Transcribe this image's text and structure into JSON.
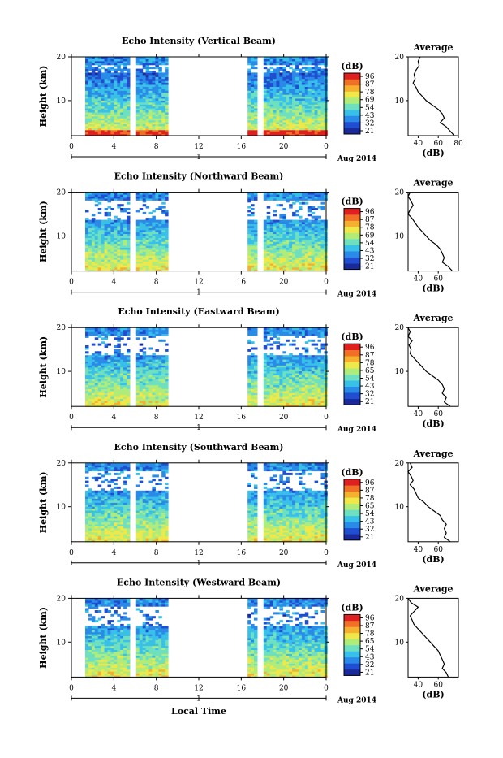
{
  "chart_data": {
    "type": "heatmap",
    "colorbar": {
      "label": "(dB)",
      "colors": [
        "#1a2a9a",
        "#1f4fd0",
        "#2a8ae8",
        "#38c0e8",
        "#6ee0c0",
        "#b0ec7a",
        "#eee84a",
        "#f5b030",
        "#f07028",
        "#e02020"
      ]
    },
    "x_axis": {
      "label": "Local Time",
      "range": [
        0,
        24
      ],
      "ticks": [
        "0",
        "4",
        "8",
        "12",
        "16",
        "20",
        "0"
      ],
      "day_label": "1",
      "date_label": "Aug 2014"
    },
    "profile_xlabel": "(dB)",
    "panels": [
      {
        "title": "Echo Intensity (Vertical Beam)",
        "ylabel": "Height (km)",
        "y_ticks": [
          "20",
          "10"
        ],
        "colorbar_ticks": [
          "96",
          "87",
          "78",
          "69",
          "54",
          "43",
          "32",
          "21"
        ],
        "profile_title": "Average",
        "profile_y_ticks": [
          "20",
          "10"
        ],
        "profile_x_ticks": [
          "40",
          "60",
          "80"
        ],
        "profile": [
          [
            20,
            42
          ],
          [
            19,
            40
          ],
          [
            18,
            41
          ],
          [
            17,
            38
          ],
          [
            16,
            36
          ],
          [
            15,
            37
          ],
          [
            14,
            35
          ],
          [
            13,
            38
          ],
          [
            12,
            40
          ],
          [
            11,
            44
          ],
          [
            10,
            48
          ],
          [
            9,
            54
          ],
          [
            8,
            60
          ],
          [
            7,
            64
          ],
          [
            6,
            66
          ],
          [
            5,
            62
          ],
          [
            4,
            68
          ],
          [
            3,
            72
          ],
          [
            2,
            76
          ]
        ]
      },
      {
        "title": "Echo Intensity (Northward Beam)",
        "ylabel": "Height (km)",
        "y_ticks": [
          "20",
          "10"
        ],
        "colorbar_ticks": [
          "96",
          "87",
          "78",
          "69",
          "54",
          "43",
          "32",
          "21"
        ],
        "profile_title": "Average",
        "profile_y_ticks": [
          "20",
          "10"
        ],
        "profile_x_ticks": [
          "40",
          "60"
        ],
        "profile": [
          [
            20,
            32
          ],
          [
            19,
            30
          ],
          [
            18,
            33
          ],
          [
            17,
            35
          ],
          [
            16,
            32
          ],
          [
            15,
            30
          ],
          [
            14,
            34
          ],
          [
            13,
            37
          ],
          [
            12,
            40
          ],
          [
            11,
            44
          ],
          [
            10,
            48
          ],
          [
            9,
            52
          ],
          [
            8,
            58
          ],
          [
            7,
            62
          ],
          [
            6,
            64
          ],
          [
            5,
            66
          ],
          [
            4,
            64
          ],
          [
            3,
            70
          ],
          [
            2,
            74
          ]
        ]
      },
      {
        "title": "Echo Intensity (Eastward Beam)",
        "ylabel": "Height (km)",
        "y_ticks": [
          "20",
          "10"
        ],
        "colorbar_ticks": [
          "96",
          "87",
          "78",
          "65",
          "54",
          "43",
          "32",
          "21"
        ],
        "profile_title": "Average",
        "profile_y_ticks": [
          "20",
          "10"
        ],
        "profile_x_ticks": [
          "40",
          "60"
        ],
        "profile": [
          [
            20,
            30
          ],
          [
            19,
            32
          ],
          [
            18,
            30
          ],
          [
            17,
            34
          ],
          [
            16,
            31
          ],
          [
            15,
            33
          ],
          [
            14,
            32
          ],
          [
            13,
            36
          ],
          [
            12,
            40
          ],
          [
            11,
            44
          ],
          [
            10,
            48
          ],
          [
            9,
            54
          ],
          [
            8,
            60
          ],
          [
            7,
            64
          ],
          [
            6,
            66
          ],
          [
            5,
            64
          ],
          [
            4,
            68
          ],
          [
            3,
            66
          ],
          [
            2,
            72
          ]
        ]
      },
      {
        "title": "Echo Intensity (Southward Beam)",
        "ylabel": "Height (km)",
        "y_ticks": [
          "20",
          "10"
        ],
        "colorbar_ticks": [
          "96",
          "87",
          "78",
          "65",
          "54",
          "43",
          "32",
          "21"
        ],
        "profile_title": "Average",
        "profile_y_ticks": [
          "20",
          "10"
        ],
        "profile_x_ticks": [
          "40",
          "60"
        ],
        "profile": [
          [
            20,
            32
          ],
          [
            19,
            34
          ],
          [
            18,
            30
          ],
          [
            17,
            33
          ],
          [
            16,
            35
          ],
          [
            15,
            32
          ],
          [
            14,
            36
          ],
          [
            13,
            38
          ],
          [
            12,
            40
          ],
          [
            11,
            46
          ],
          [
            10,
            50
          ],
          [
            9,
            56
          ],
          [
            8,
            62
          ],
          [
            7,
            64
          ],
          [
            6,
            68
          ],
          [
            5,
            66
          ],
          [
            4,
            68
          ],
          [
            3,
            66
          ],
          [
            2,
            72
          ]
        ]
      },
      {
        "title": "Echo Intensity (Westward Beam)",
        "ylabel": "Height (km)",
        "y_ticks": [
          "20",
          "10"
        ],
        "colorbar_ticks": [
          "96",
          "87",
          "78",
          "65",
          "54",
          "43",
          "32",
          "21"
        ],
        "profile_title": "Average",
        "profile_y_ticks": [
          "20",
          "10"
        ],
        "profile_x_ticks": [
          "40",
          "60"
        ],
        "profile": [
          [
            20,
            30
          ],
          [
            19,
            33
          ],
          [
            18,
            40
          ],
          [
            17,
            36
          ],
          [
            16,
            32
          ],
          [
            15,
            34
          ],
          [
            14,
            36
          ],
          [
            13,
            40
          ],
          [
            12,
            44
          ],
          [
            11,
            48
          ],
          [
            10,
            52
          ],
          [
            9,
            56
          ],
          [
            8,
            60
          ],
          [
            7,
            62
          ],
          [
            6,
            64
          ],
          [
            5,
            66
          ],
          [
            4,
            64
          ],
          [
            3,
            68
          ],
          [
            2,
            70
          ]
        ]
      }
    ]
  }
}
